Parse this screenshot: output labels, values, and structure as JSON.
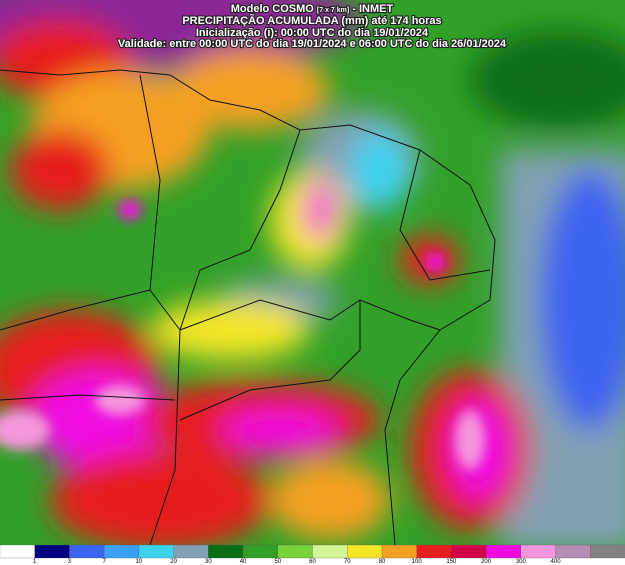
{
  "header": {
    "line1": {
      "model": "Modelo COSMO",
      "resolution": "[7 x 7 km]",
      "source": "- INMET"
    },
    "title": "PRECIPITAÇÃO ACUMULADA (mm) até 174 horas",
    "initialization": "Inicialização (i): 00:00 UTC do dia 19/01/2024",
    "validity": "Validade: entre 00:00 UTC do dia 19/01/2024 e 06:00 UTC do dia 26/01/2024"
  },
  "legend": {
    "labels": [
      "1",
      "3",
      "7",
      "10",
      "20",
      "30",
      "40",
      "50",
      "60",
      "70",
      "80",
      "100",
      "150",
      "200",
      "300",
      "400"
    ],
    "colors": [
      "#ffffff",
      "#000080",
      "#3c64f0",
      "#3ca0f5",
      "#3cd2f0",
      "#82a0b4",
      "#0a6e14",
      "#32a028",
      "#78d23c",
      "#d2f596",
      "#f5e628",
      "#f5a023",
      "#e61e1e",
      "#d20046",
      "#f00ae1",
      "#f596dc",
      "#b48cb4",
      "#828282"
    ]
  }
}
